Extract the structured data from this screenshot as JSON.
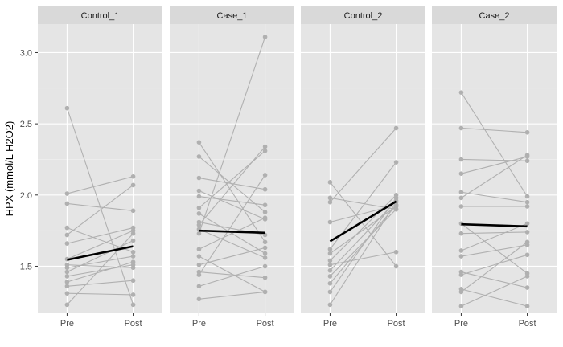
{
  "chart_data": {
    "type": "line",
    "ylabel": "HPX (mmol/L H2O2)",
    "xlabel": "",
    "x_categories": [
      "Pre",
      "Post"
    ],
    "y_ticks": [
      "1.5",
      "2.0",
      "2.5",
      "3.0"
    ],
    "ylim": [
      1.17,
      3.2
    ],
    "grid": true,
    "legend": "none",
    "colors": {
      "panel_background": "#e5e5e5",
      "strip_background": "#d9d9d9",
      "grid": "#ffffff",
      "subject_line": "#b0b0b0",
      "point": "#b0b0b0",
      "mean_line": "#000000"
    },
    "facets": [
      {
        "label": "Control_1",
        "mean": [
          1.545,
          1.64
        ],
        "pairs": [
          [
            2.61,
            1.23
          ],
          [
            2.01,
            2.13
          ],
          [
            1.94,
            1.89
          ],
          [
            1.77,
            1.6
          ],
          [
            1.72,
            2.07
          ],
          [
            1.66,
            1.77
          ],
          [
            1.55,
            1.75
          ],
          [
            1.51,
            1.49
          ],
          [
            1.49,
            1.57
          ],
          [
            1.46,
            1.68
          ],
          [
            1.43,
            1.51
          ],
          [
            1.39,
            1.53
          ],
          [
            1.36,
            1.4
          ],
          [
            1.31,
            1.3
          ],
          [
            1.23,
            1.73
          ]
        ]
      },
      {
        "label": "Case_1",
        "mean": [
          1.75,
          1.735
        ],
        "pairs": [
          [
            2.37,
            1.67
          ],
          [
            2.27,
            1.88
          ],
          [
            2.12,
            2.04
          ],
          [
            2.03,
            1.83
          ],
          [
            1.99,
            1.93
          ],
          [
            1.91,
            2.31
          ],
          [
            1.87,
            1.59
          ],
          [
            1.81,
            1.72
          ],
          [
            1.79,
            2.34
          ],
          [
            1.76,
            1.56
          ],
          [
            1.73,
            3.11
          ],
          [
            1.62,
            1.84
          ],
          [
            1.57,
            1.32
          ],
          [
            1.51,
            1.63
          ],
          [
            1.46,
            1.42
          ],
          [
            1.44,
            2.14
          ],
          [
            1.36,
            1.5
          ],
          [
            1.27,
            1.32
          ]
        ]
      },
      {
        "label": "Control_2",
        "mean": [
          1.675,
          1.955
        ],
        "pairs": [
          [
            2.09,
            1.5
          ],
          [
            1.98,
            1.9
          ],
          [
            1.95,
            2.47
          ],
          [
            1.81,
            1.93
          ],
          [
            1.62,
            2.23
          ],
          [
            1.59,
            1.92
          ],
          [
            1.54,
            2.0
          ],
          [
            1.51,
            1.6
          ],
          [
            1.47,
            1.96
          ],
          [
            1.43,
            1.9
          ],
          [
            1.38,
            1.93
          ],
          [
            1.32,
            1.98
          ],
          [
            1.23,
            1.95
          ]
        ]
      },
      {
        "label": "Case_2",
        "mean": [
          1.795,
          1.78
        ],
        "pairs": [
          [
            2.72,
            1.99
          ],
          [
            2.47,
            2.44
          ],
          [
            2.25,
            2.24
          ],
          [
            2.15,
            2.27
          ],
          [
            2.02,
            1.95
          ],
          [
            1.98,
            2.28
          ],
          [
            1.92,
            1.92
          ],
          [
            1.8,
            1.45
          ],
          [
            1.73,
            1.74
          ],
          [
            1.61,
            1.8
          ],
          [
            1.57,
            1.65
          ],
          [
            1.46,
            1.35
          ],
          [
            1.44,
            1.58
          ],
          [
            1.34,
            1.22
          ],
          [
            1.32,
            1.67
          ],
          [
            1.22,
            1.43
          ]
        ]
      }
    ]
  }
}
